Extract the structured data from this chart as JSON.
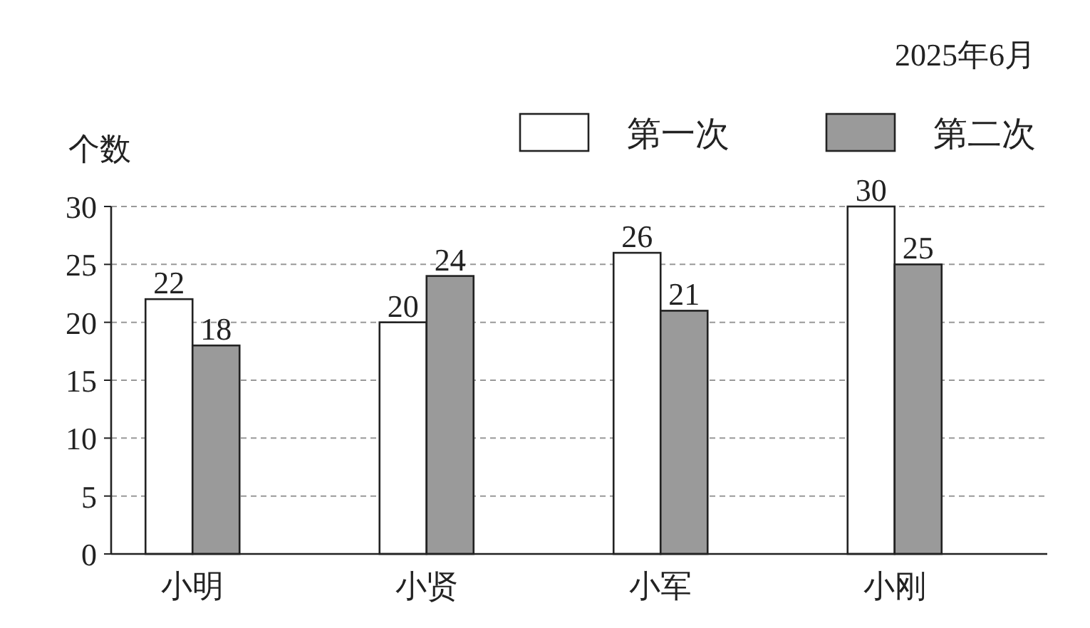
{
  "chart_data": {
    "type": "bar",
    "title": "2025年6月",
    "ylabel": "个数",
    "categories": [
      "小明",
      "小贤",
      "小军",
      "小刚"
    ],
    "series": [
      {
        "name": "第一次",
        "color": "#ffffff",
        "values": [
          22,
          20,
          26,
          30
        ]
      },
      {
        "name": "第二次",
        "color": "#9a9a9a",
        "values": [
          18,
          24,
          21,
          25
        ]
      }
    ],
    "ylim": [
      0,
      30
    ],
    "yticks": [
      0,
      5,
      10,
      15,
      20,
      25,
      30
    ],
    "grid": "y",
    "legend": "top right",
    "data_labels": true
  }
}
